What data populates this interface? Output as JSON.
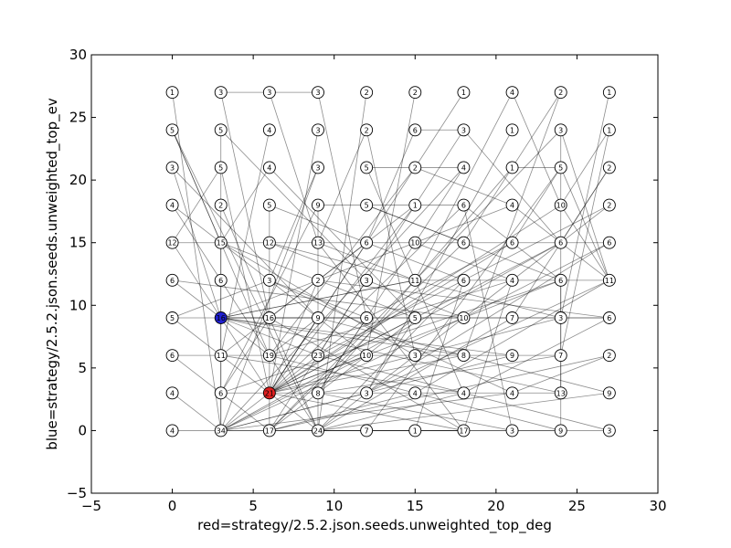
{
  "chart_data": {
    "type": "scatter",
    "title": "",
    "xlabel": "red=strategy/2.5.2.json.seeds.unweighted_top_deg",
    "ylabel": "blue=strategy/2.5.2.json.seeds.unweighted_top_ev",
    "xlim": [
      -5,
      30
    ],
    "ylim": [
      -5,
      30
    ],
    "xticks": [
      -5,
      0,
      5,
      10,
      15,
      20,
      25,
      30
    ],
    "yticks": [
      -5,
      0,
      5,
      10,
      15,
      20,
      25,
      30
    ],
    "xtick_labels": [
      "−5",
      "0",
      "5",
      "10",
      "15",
      "20",
      "25",
      "30"
    ],
    "ytick_labels": [
      "−5",
      "0",
      "5",
      "10",
      "15",
      "20",
      "25",
      "30"
    ],
    "grid": false,
    "legend": "none",
    "colors": {
      "default_node": "#ffffff",
      "red_node": "#e02020",
      "blue_node": "#2020d0",
      "edge": "#000000"
    },
    "nodes": [
      {
        "id": "n0_27",
        "x": 0,
        "y": 27,
        "label": "1"
      },
      {
        "id": "n3_27",
        "x": 3,
        "y": 27,
        "label": "3"
      },
      {
        "id": "n6_27",
        "x": 6,
        "y": 27,
        "label": "3"
      },
      {
        "id": "n9_27",
        "x": 9,
        "y": 27,
        "label": "3"
      },
      {
        "id": "n12_27",
        "x": 12,
        "y": 27,
        "label": "2"
      },
      {
        "id": "n15_27",
        "x": 15,
        "y": 27,
        "label": "2"
      },
      {
        "id": "n18_27",
        "x": 18,
        "y": 27,
        "label": "1"
      },
      {
        "id": "n21_27",
        "x": 21,
        "y": 27,
        "label": "4"
      },
      {
        "id": "n24_27",
        "x": 24,
        "y": 27,
        "label": "2"
      },
      {
        "id": "n27_27",
        "x": 27,
        "y": 27,
        "label": "1"
      },
      {
        "id": "n0_24",
        "x": 0,
        "y": 24,
        "label": "5"
      },
      {
        "id": "n3_24",
        "x": 3,
        "y": 24,
        "label": "5"
      },
      {
        "id": "n6_24",
        "x": 6,
        "y": 24,
        "label": "4"
      },
      {
        "id": "n9_24",
        "x": 9,
        "y": 24,
        "label": "3"
      },
      {
        "id": "n12_24",
        "x": 12,
        "y": 24,
        "label": "2"
      },
      {
        "id": "n15_24",
        "x": 15,
        "y": 24,
        "label": "6"
      },
      {
        "id": "n18_24",
        "x": 18,
        "y": 24,
        "label": "3"
      },
      {
        "id": "n21_24",
        "x": 21,
        "y": 24,
        "label": "1"
      },
      {
        "id": "n24_24",
        "x": 24,
        "y": 24,
        "label": "3"
      },
      {
        "id": "n27_24",
        "x": 27,
        "y": 24,
        "label": "1"
      },
      {
        "id": "n0_21",
        "x": 0,
        "y": 21,
        "label": "3"
      },
      {
        "id": "n3_21",
        "x": 3,
        "y": 21,
        "label": "5"
      },
      {
        "id": "n6_21",
        "x": 6,
        "y": 21,
        "label": "4"
      },
      {
        "id": "n9_21",
        "x": 9,
        "y": 21,
        "label": "3"
      },
      {
        "id": "n12_21",
        "x": 12,
        "y": 21,
        "label": "5"
      },
      {
        "id": "n15_21",
        "x": 15,
        "y": 21,
        "label": "2"
      },
      {
        "id": "n18_21",
        "x": 18,
        "y": 21,
        "label": "4"
      },
      {
        "id": "n21_21",
        "x": 21,
        "y": 21,
        "label": "1"
      },
      {
        "id": "n24_21",
        "x": 24,
        "y": 21,
        "label": "5"
      },
      {
        "id": "n27_21",
        "x": 27,
        "y": 21,
        "label": "2"
      },
      {
        "id": "n0_18",
        "x": 0,
        "y": 18,
        "label": "4"
      },
      {
        "id": "n3_18",
        "x": 3,
        "y": 18,
        "label": "2"
      },
      {
        "id": "n6_18",
        "x": 6,
        "y": 18,
        "label": "5"
      },
      {
        "id": "n9_18",
        "x": 9,
        "y": 18,
        "label": "9"
      },
      {
        "id": "n12_18",
        "x": 12,
        "y": 18,
        "label": "5"
      },
      {
        "id": "n15_18",
        "x": 15,
        "y": 18,
        "label": "1"
      },
      {
        "id": "n18_18",
        "x": 18,
        "y": 18,
        "label": "6"
      },
      {
        "id": "n21_18",
        "x": 21,
        "y": 18,
        "label": "4"
      },
      {
        "id": "n24_18",
        "x": 24,
        "y": 18,
        "label": "10"
      },
      {
        "id": "n27_18",
        "x": 27,
        "y": 18,
        "label": "2"
      },
      {
        "id": "n0_15",
        "x": 0,
        "y": 15,
        "label": "12"
      },
      {
        "id": "n3_15",
        "x": 3,
        "y": 15,
        "label": "15"
      },
      {
        "id": "n6_15",
        "x": 6,
        "y": 15,
        "label": "12"
      },
      {
        "id": "n9_15",
        "x": 9,
        "y": 15,
        "label": "13"
      },
      {
        "id": "n12_15",
        "x": 12,
        "y": 15,
        "label": "6"
      },
      {
        "id": "n15_15",
        "x": 15,
        "y": 15,
        "label": "10"
      },
      {
        "id": "n18_15",
        "x": 18,
        "y": 15,
        "label": "6"
      },
      {
        "id": "n21_15",
        "x": 21,
        "y": 15,
        "label": "6"
      },
      {
        "id": "n24_15",
        "x": 24,
        "y": 15,
        "label": "6"
      },
      {
        "id": "n27_15",
        "x": 27,
        "y": 15,
        "label": "6"
      },
      {
        "id": "n0_12",
        "x": 0,
        "y": 12,
        "label": "6"
      },
      {
        "id": "n3_12",
        "x": 3,
        "y": 12,
        "label": "6"
      },
      {
        "id": "n6_12",
        "x": 6,
        "y": 12,
        "label": "3"
      },
      {
        "id": "n9_12",
        "x": 9,
        "y": 12,
        "label": "2"
      },
      {
        "id": "n12_12",
        "x": 12,
        "y": 12,
        "label": "3"
      },
      {
        "id": "n15_12",
        "x": 15,
        "y": 12,
        "label": "11"
      },
      {
        "id": "n18_12",
        "x": 18,
        "y": 12,
        "label": "6"
      },
      {
        "id": "n21_12",
        "x": 21,
        "y": 12,
        "label": "4"
      },
      {
        "id": "n24_12",
        "x": 24,
        "y": 12,
        "label": "6"
      },
      {
        "id": "n27_12",
        "x": 27,
        "y": 12,
        "label": "11"
      },
      {
        "id": "n0_9",
        "x": 0,
        "y": 9,
        "label": "5"
      },
      {
        "id": "n3_9",
        "x": 3,
        "y": 9,
        "label": "16",
        "color": "blue"
      },
      {
        "id": "n6_9",
        "x": 6,
        "y": 9,
        "label": "16"
      },
      {
        "id": "n9_9",
        "x": 9,
        "y": 9,
        "label": "9"
      },
      {
        "id": "n12_9",
        "x": 12,
        "y": 9,
        "label": "6"
      },
      {
        "id": "n15_9",
        "x": 15,
        "y": 9,
        "label": "5"
      },
      {
        "id": "n18_9",
        "x": 18,
        "y": 9,
        "label": "10"
      },
      {
        "id": "n21_9",
        "x": 21,
        "y": 9,
        "label": "7"
      },
      {
        "id": "n24_9",
        "x": 24,
        "y": 9,
        "label": "3"
      },
      {
        "id": "n27_9",
        "x": 27,
        "y": 9,
        "label": "6"
      },
      {
        "id": "n0_6",
        "x": 0,
        "y": 6,
        "label": "6"
      },
      {
        "id": "n3_6",
        "x": 3,
        "y": 6,
        "label": "11"
      },
      {
        "id": "n6_6",
        "x": 6,
        "y": 6,
        "label": "19"
      },
      {
        "id": "n9_6",
        "x": 9,
        "y": 6,
        "label": "23"
      },
      {
        "id": "n12_6",
        "x": 12,
        "y": 6,
        "label": "10"
      },
      {
        "id": "n15_6",
        "x": 15,
        "y": 6,
        "label": "3"
      },
      {
        "id": "n18_6",
        "x": 18,
        "y": 6,
        "label": "8"
      },
      {
        "id": "n21_6",
        "x": 21,
        "y": 6,
        "label": "9"
      },
      {
        "id": "n24_6",
        "x": 24,
        "y": 6,
        "label": "7"
      },
      {
        "id": "n27_6",
        "x": 27,
        "y": 6,
        "label": "2"
      },
      {
        "id": "n0_3",
        "x": 0,
        "y": 3,
        "label": "4"
      },
      {
        "id": "n3_3",
        "x": 3,
        "y": 3,
        "label": "6"
      },
      {
        "id": "n6_3",
        "x": 6,
        "y": 3,
        "label": "21",
        "color": "red"
      },
      {
        "id": "n9_3",
        "x": 9,
        "y": 3,
        "label": "8"
      },
      {
        "id": "n12_3",
        "x": 12,
        "y": 3,
        "label": "3"
      },
      {
        "id": "n15_3",
        "x": 15,
        "y": 3,
        "label": "4"
      },
      {
        "id": "n18_3",
        "x": 18,
        "y": 3,
        "label": "4"
      },
      {
        "id": "n21_3",
        "x": 21,
        "y": 3,
        "label": "4"
      },
      {
        "id": "n24_3",
        "x": 24,
        "y": 3,
        "label": "13"
      },
      {
        "id": "n27_3",
        "x": 27,
        "y": 3,
        "label": "9"
      },
      {
        "id": "n0_0",
        "x": 0,
        "y": 0,
        "label": "4"
      },
      {
        "id": "n3_0",
        "x": 3,
        "y": 0,
        "label": "34"
      },
      {
        "id": "n6_0",
        "x": 6,
        "y": 0,
        "label": "17"
      },
      {
        "id": "n9_0",
        "x": 9,
        "y": 0,
        "label": "24"
      },
      {
        "id": "n12_0",
        "x": 12,
        "y": 0,
        "label": "7"
      },
      {
        "id": "n15_0",
        "x": 15,
        "y": 0,
        "label": "1"
      },
      {
        "id": "n18_0",
        "x": 18,
        "y": 0,
        "label": "17"
      },
      {
        "id": "n21_0",
        "x": 21,
        "y": 0,
        "label": "3"
      },
      {
        "id": "n24_0",
        "x": 24,
        "y": 0,
        "label": "9"
      },
      {
        "id": "n27_0",
        "x": 27,
        "y": 0,
        "label": "3"
      }
    ],
    "edges": [
      [
        "n3_27",
        "n9_27"
      ],
      [
        "n15_24",
        "n18_24"
      ],
      [
        "n12_21",
        "n18_21"
      ],
      [
        "n21_21",
        "n24_21"
      ],
      [
        "n9_18",
        "n18_18"
      ],
      [
        "n0_15",
        "n27_15"
      ],
      [
        "n15_12",
        "n27_12"
      ],
      [
        "n0_9",
        "n27_9"
      ],
      [
        "n0_6",
        "n24_6"
      ],
      [
        "n3_3",
        "n24_3"
      ],
      [
        "n0_0",
        "n27_0"
      ],
      [
        "n3_24",
        "n3_0"
      ],
      [
        "n6_18",
        "n6_0"
      ],
      [
        "n9_18",
        "n9_0"
      ],
      [
        "n24_24",
        "n24_0"
      ],
      [
        "n3_15",
        "n3_0"
      ],
      [
        "n0_27",
        "n3_0"
      ],
      [
        "n3_27",
        "n6_9"
      ],
      [
        "n6_27",
        "n9_15"
      ],
      [
        "n9_27",
        "n12_9"
      ],
      [
        "n12_27",
        "n9_0"
      ],
      [
        "n15_27",
        "n12_6"
      ],
      [
        "n18_27",
        "n6_3"
      ],
      [
        "n21_27",
        "n15_12"
      ],
      [
        "n24_27",
        "n18_6"
      ],
      [
        "n27_27",
        "n24_9"
      ],
      [
        "n0_24",
        "n6_6"
      ],
      [
        "n0_24",
        "n9_0"
      ],
      [
        "n3_24",
        "n12_12"
      ],
      [
        "n6_24",
        "n3_6"
      ],
      [
        "n9_24",
        "n6_3"
      ],
      [
        "n12_24",
        "n15_6"
      ],
      [
        "n18_24",
        "n9_6"
      ],
      [
        "n21_24",
        "n12_3"
      ],
      [
        "n24_24",
        "n6_0"
      ],
      [
        "n27_24",
        "n24_6"
      ],
      [
        "n0_21",
        "n9_9"
      ],
      [
        "n3_21",
        "n6_3"
      ],
      [
        "n6_21",
        "n15_9"
      ],
      [
        "n9_21",
        "n3_0"
      ],
      [
        "n12_21",
        "n18_3"
      ],
      [
        "n15_21",
        "n6_6"
      ],
      [
        "n18_21",
        "n3_0"
      ],
      [
        "n21_21",
        "n9_3"
      ],
      [
        "n24_21",
        "n12_0"
      ],
      [
        "n27_21",
        "n21_9"
      ],
      [
        "n0_18",
        "n12_6"
      ],
      [
        "n3_18",
        "n9_0"
      ],
      [
        "n6_18",
        "n18_12"
      ],
      [
        "n9_18",
        "n3_3"
      ],
      [
        "n12_18",
        "n24_12"
      ],
      [
        "n15_18",
        "n6_9"
      ],
      [
        "n18_18",
        "n21_0"
      ],
      [
        "n21_18",
        "n3_9"
      ],
      [
        "n24_18",
        "n6_3"
      ],
      [
        "n27_18",
        "n9_6"
      ],
      [
        "n0_15",
        "n6_3"
      ],
      [
        "n3_15",
        "n15_6"
      ],
      [
        "n6_15",
        "n24_9"
      ],
      [
        "n9_15",
        "n18_0"
      ],
      [
        "n12_15",
        "n3_6"
      ],
      [
        "n15_15",
        "n9_3"
      ],
      [
        "n18_15",
        "n6_0"
      ],
      [
        "n21_15",
        "n12_9"
      ],
      [
        "n24_15",
        "n3_0"
      ],
      [
        "n27_15",
        "n18_9"
      ],
      [
        "n0_12",
        "n18_9"
      ],
      [
        "n3_12",
        "n9_0"
      ],
      [
        "n6_12",
        "n21_3"
      ],
      [
        "n9_12",
        "n27_9"
      ],
      [
        "n12_12",
        "n6_0"
      ],
      [
        "n15_12",
        "n3_9"
      ],
      [
        "n18_12",
        "n9_0"
      ],
      [
        "n21_12",
        "n6_6"
      ],
      [
        "n24_12",
        "n3_3"
      ],
      [
        "n27_12",
        "n12_3"
      ],
      [
        "n0_9",
        "n9_0"
      ],
      [
        "n3_9",
        "n24_3"
      ],
      [
        "n6_9",
        "n18_0"
      ],
      [
        "n9_9",
        "n27_3"
      ],
      [
        "n12_9",
        "n3_0"
      ],
      [
        "n15_9",
        "n6_0"
      ],
      [
        "n18_9",
        "n3_0"
      ],
      [
        "n21_9",
        "n9_0"
      ],
      [
        "n24_9",
        "n6_3"
      ],
      [
        "n27_9",
        "n3_9"
      ],
      [
        "n0_6",
        "n6_0"
      ],
      [
        "n3_6",
        "n18_3"
      ],
      [
        "n6_6",
        "n24_0"
      ],
      [
        "n9_6",
        "n27_0"
      ],
      [
        "n12_6",
        "n3_0"
      ],
      [
        "n15_6",
        "n9_0"
      ],
      [
        "n18_6",
        "n6_3"
      ],
      [
        "n21_6",
        "n3_0"
      ],
      [
        "n24_6",
        "n9_3"
      ],
      [
        "n27_6",
        "n6_0"
      ],
      [
        "n0_3",
        "n3_0"
      ],
      [
        "n6_3",
        "n18_0"
      ],
      [
        "n9_3",
        "n21_0"
      ],
      [
        "n12_3",
        "n3_0"
      ],
      [
        "n15_3",
        "n6_0"
      ],
      [
        "n18_3",
        "n9_0"
      ],
      [
        "n21_3",
        "n3_0"
      ],
      [
        "n27_3",
        "n9_0"
      ],
      [
        "n3_0",
        "n18_0"
      ],
      [
        "n6_0",
        "n24_0"
      ],
      [
        "n9_0",
        "n18_0"
      ],
      [
        "n0_24",
        "n3_15"
      ],
      [
        "n0_21",
        "n3_9"
      ],
      [
        "n0_18",
        "n3_12"
      ],
      [
        "n0_12",
        "n3_9"
      ],
      [
        "n0_9",
        "n6_12"
      ],
      [
        "n3_21",
        "n0_15"
      ],
      [
        "n6_21",
        "n3_15"
      ],
      [
        "n9_21",
        "n6_12"
      ],
      [
        "n12_24",
        "n9_15"
      ],
      [
        "n15_24",
        "n12_15"
      ],
      [
        "n18_21",
        "n15_15"
      ],
      [
        "n21_21",
        "n18_15"
      ],
      [
        "n24_21",
        "n21_15"
      ],
      [
        "n27_21",
        "n24_15"
      ],
      [
        "n27_24",
        "n24_18"
      ],
      [
        "n24_27",
        "n21_21"
      ],
      [
        "n21_27",
        "n24_18"
      ],
      [
        "n18_24",
        "n24_15"
      ],
      [
        "n15_21",
        "n21_18"
      ],
      [
        "n12_18",
        "n18_15"
      ],
      [
        "n9_15",
        "n15_12"
      ],
      [
        "n6_15",
        "n12_12"
      ],
      [
        "n3_15",
        "n9_12"
      ],
      [
        "n6_12",
        "n12_9"
      ],
      [
        "n9_12",
        "n15_9"
      ],
      [
        "n12_12",
        "n18_9"
      ],
      [
        "n15_15",
        "n21_12"
      ],
      [
        "n18_18",
        "n24_12"
      ],
      [
        "n21_18",
        "n27_12"
      ],
      [
        "n24_18",
        "n27_12"
      ],
      [
        "n24_24",
        "n27_12"
      ],
      [
        "n24_21",
        "n27_12"
      ],
      [
        "n27_18",
        "n15_6"
      ],
      [
        "n27_15",
        "n12_3"
      ],
      [
        "n27_12",
        "n15_3"
      ],
      [
        "n27_9",
        "n18_3"
      ],
      [
        "n27_6",
        "n21_3"
      ],
      [
        "n24_12",
        "n24_3"
      ],
      [
        "n21_12",
        "n18_0"
      ],
      [
        "n18_12",
        "n15_0"
      ],
      [
        "n15_9",
        "n12_3"
      ],
      [
        "n12_9",
        "n9_3"
      ],
      [
        "n9_9",
        "n6_6"
      ],
      [
        "n6_9",
        "n3_3"
      ],
      [
        "n3_9",
        "n6_6"
      ],
      [
        "n3_9",
        "n9_6"
      ],
      [
        "n3_9",
        "n12_9"
      ],
      [
        "n3_9",
        "n15_12"
      ],
      [
        "n3_9",
        "n18_6"
      ],
      [
        "n3_9",
        "n21_6"
      ],
      [
        "n6_3",
        "n9_9"
      ],
      [
        "n6_3",
        "n12_15"
      ],
      [
        "n6_3",
        "n15_18"
      ],
      [
        "n6_3",
        "n18_18"
      ],
      [
        "n6_3",
        "n21_15"
      ],
      [
        "n6_3",
        "n24_15"
      ],
      [
        "n6_3",
        "n9_12"
      ],
      [
        "n6_3",
        "n12_6"
      ],
      [
        "n6_3",
        "n15_9"
      ],
      [
        "n6_3",
        "n24_12"
      ]
    ]
  }
}
